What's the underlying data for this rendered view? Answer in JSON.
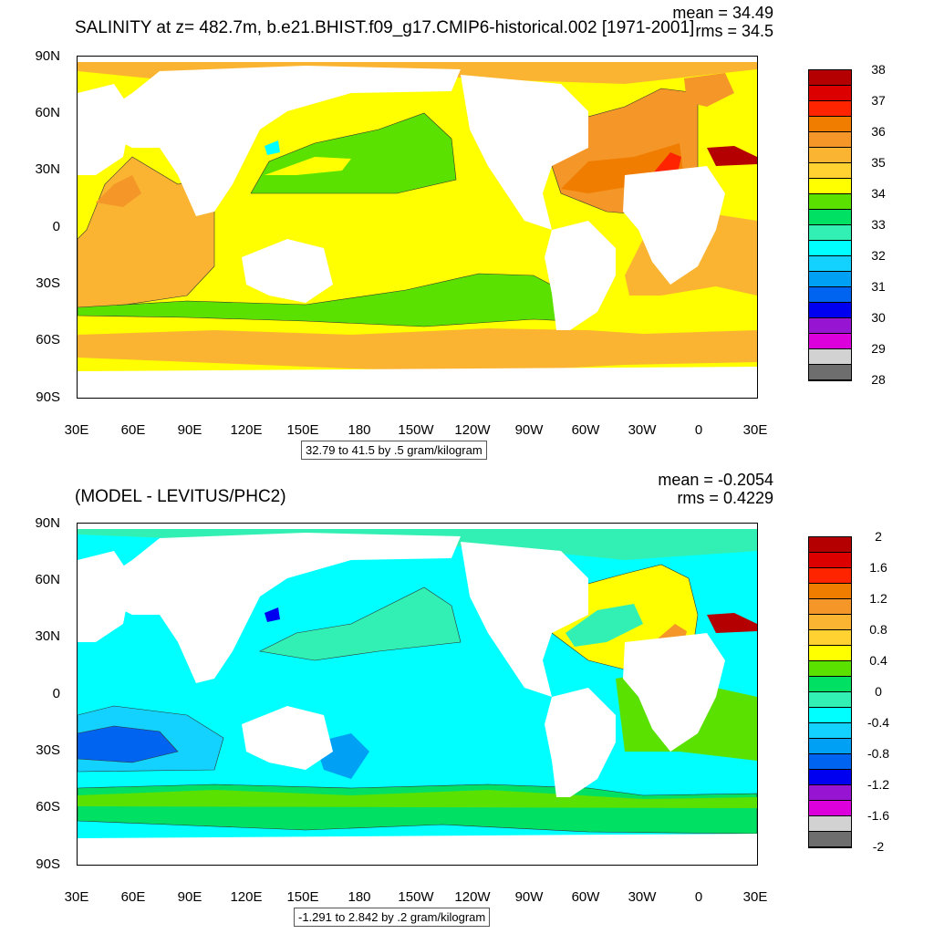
{
  "top": {
    "title": "SALINITY at z= 482.7m, b.e21.BHIST.f09_g17.CMIP6-historical.002 [1971-2001]",
    "mean_text": "mean = 34.49",
    "rms_text": "rms = 34.5",
    "range_text": "32.79 to 41.5 by .5 gram/kilogram",
    "colorbar": {
      "labels": [
        "38",
        "37",
        "36",
        "35",
        "34",
        "33",
        "32",
        "31",
        "30",
        "29",
        "28"
      ],
      "colors": [
        "#b40000",
        "#dc0000",
        "#ff2400",
        "#f07d00",
        "#f59628",
        "#fab432",
        "#ffd232",
        "#ffff00",
        "#5ae100",
        "#00e164",
        "#32f0b4",
        "#00ffff",
        "#14d2ff",
        "#00a0f5",
        "#0064f0",
        "#0000f0",
        "#9614d2",
        "#dc00dc",
        "#d2d2d2",
        "#6e6e6e"
      ]
    }
  },
  "bottom": {
    "title": "(MODEL - LEVITUS/PHC2)",
    "mean_text": "mean = -0.2054",
    "rms_text": "rms = 0.4229",
    "range_text": "-1.291 to 2.842 by .2 gram/kilogram",
    "colorbar": {
      "labels": [
        "2",
        "1.6",
        "1.2",
        "0.8",
        "0.4",
        "0",
        "-0.4",
        "-0.8",
        "-1.2",
        "-1.6",
        "-2"
      ],
      "colors": [
        "#b40000",
        "#dc0000",
        "#ff2400",
        "#f07d00",
        "#f59628",
        "#fab432",
        "#ffd232",
        "#ffff00",
        "#5ae100",
        "#00e164",
        "#32f0b4",
        "#00ffff",
        "#14d2ff",
        "#00a0f5",
        "#0064f0",
        "#0000f0",
        "#9614d2",
        "#dc00dc",
        "#d2d2d2",
        "#6e6e6e"
      ]
    }
  },
  "axes": {
    "lat_labels": [
      "90N",
      "60N",
      "30N",
      "0",
      "30S",
      "60S",
      "90S"
    ],
    "lon_labels": [
      "30E",
      "60E",
      "90E",
      "120E",
      "150E",
      "180",
      "150W",
      "120W",
      "90W",
      "60W",
      "30W",
      "0",
      "30E"
    ]
  },
  "colors": {
    "land": "#ffffff",
    "top_base": "#ffff00",
    "bottom_base": "#00ffff"
  }
}
